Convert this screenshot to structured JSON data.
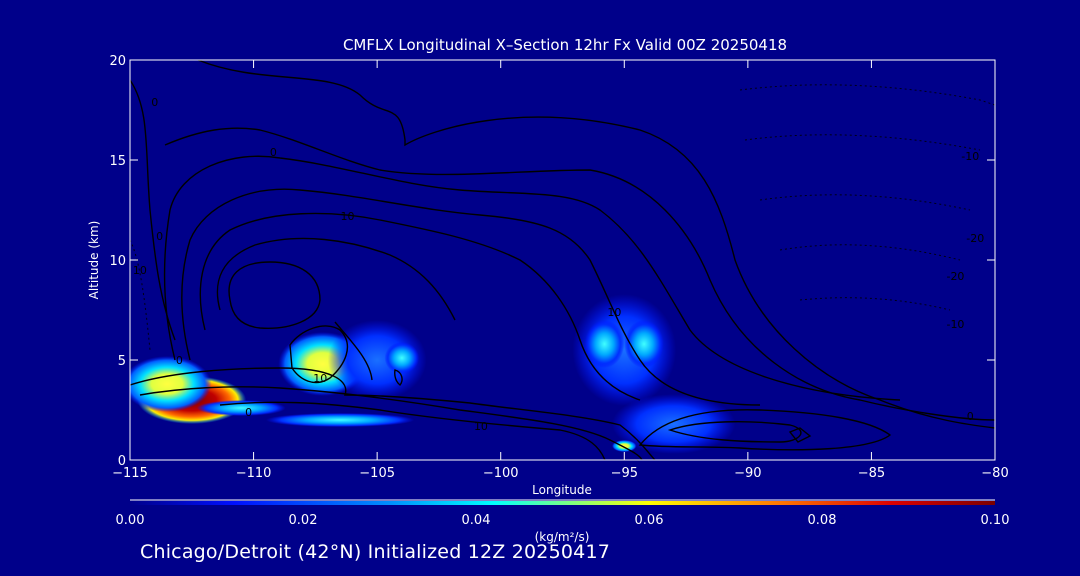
{
  "chart_data": {
    "type": "heatmap",
    "title": "CMFLX Longitudinal X–Section 12hr  Fx Valid 00Z 20250418",
    "xlabel": "Longitude",
    "ylabel": "Altitude (km)",
    "xlim": [
      -115,
      -80
    ],
    "ylim": [
      0,
      20
    ],
    "x_ticks": [
      -115,
      -110,
      -105,
      -100,
      -95,
      -90,
      -85,
      -80
    ],
    "x_tick_labels": [
      "−115",
      "−110",
      "−105",
      "−100",
      "−95",
      "−90",
      "−85",
      "−80"
    ],
    "y_ticks": [
      0,
      5,
      10,
      15,
      20
    ],
    "y_tick_labels": [
      "0",
      "5",
      "10",
      "15",
      "20"
    ],
    "colorbar": {
      "label": "(kg/m²/s)",
      "range": [
        0.0,
        0.1
      ],
      "ticks": [
        0.0,
        0.02,
        0.04,
        0.06,
        0.08,
        0.1
      ],
      "tick_labels": [
        "0.00",
        "0.02",
        "0.04",
        "0.06",
        "0.08",
        "0.10"
      ],
      "colormap": [
        "#00008a",
        "#0010ff",
        "#00aaff",
        "#00ffff",
        "#ffff00",
        "#ff6600",
        "#cc0000",
        "#8a0000"
      ]
    },
    "flux_cells": [
      {
        "x": -112.5,
        "y": 3.0,
        "rx": 2.2,
        "ry": 1.2,
        "value": 0.1
      },
      {
        "x": -113.5,
        "y": 3.8,
        "rx": 1.8,
        "ry": 1.4,
        "value": 0.05
      },
      {
        "x": -107.2,
        "y": 4.8,
        "rx": 1.8,
        "ry": 1.6,
        "value": 0.06
      },
      {
        "x": -105.0,
        "y": 5.0,
        "rx": 2.0,
        "ry": 2.0,
        "value": 0.025
      },
      {
        "x": -104.0,
        "y": 5.1,
        "rx": 0.7,
        "ry": 0.8,
        "value": 0.04
      },
      {
        "x": -106.5,
        "y": 2.0,
        "rx": 3.0,
        "ry": 0.35,
        "value": 0.03
      },
      {
        "x": -110.5,
        "y": 2.6,
        "rx": 1.8,
        "ry": 0.4,
        "value": 0.03
      },
      {
        "x": -95.0,
        "y": 5.5,
        "rx": 2.1,
        "ry": 2.8,
        "value": 0.025
      },
      {
        "x": -95.8,
        "y": 5.8,
        "rx": 0.8,
        "ry": 1.2,
        "value": 0.035
      },
      {
        "x": -94.2,
        "y": 5.8,
        "rx": 0.8,
        "ry": 1.2,
        "value": 0.035
      },
      {
        "x": -95.0,
        "y": 0.7,
        "rx": 0.5,
        "ry": 0.3,
        "value": 0.05
      },
      {
        "x": -93.0,
        "y": 1.8,
        "rx": 2.5,
        "ry": 1.5,
        "value": 0.015
      }
    ],
    "contour_labels": [
      {
        "x": -113.0,
        "y": 4.8,
        "text": "0"
      },
      {
        "x": -110.2,
        "y": 2.2,
        "text": "0"
      },
      {
        "x": -109.2,
        "y": 15.2,
        "text": "0"
      },
      {
        "x": -114.0,
        "y": 17.7,
        "text": "0"
      },
      {
        "x": -113.8,
        "y": 11.0,
        "text": "0"
      },
      {
        "x": -106.2,
        "y": 12.0,
        "text": "10"
      },
      {
        "x": -107.3,
        "y": 3.9,
        "text": "10"
      },
      {
        "x": -95.4,
        "y": 7.2,
        "text": "10"
      },
      {
        "x": -100.8,
        "y": 1.5,
        "text": "10"
      },
      {
        "x": -114.6,
        "y": 9.3,
        "text": "10"
      },
      {
        "x": -81.0,
        "y": 15.0,
        "text": "-10"
      },
      {
        "x": -80.8,
        "y": 10.9,
        "text": "-20"
      },
      {
        "x": -81.6,
        "y": 9.0,
        "text": "-20"
      },
      {
        "x": -81.6,
        "y": 6.6,
        "text": "-10"
      },
      {
        "x": -81.0,
        "y": 2.0,
        "text": "0"
      }
    ]
  },
  "footer": "Chicago/Detroit (42°N) Initialized 12Z 20250417"
}
